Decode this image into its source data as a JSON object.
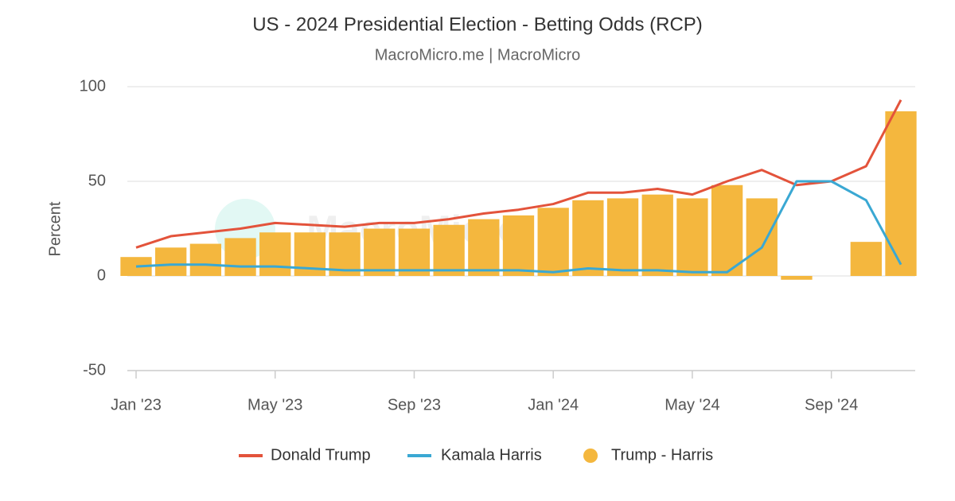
{
  "chart_data": {
    "type": "line",
    "title": "US - 2024 Presidential Election - Betting Odds (RCP)",
    "subtitle": "MacroMicro.me | MacroMicro",
    "watermark": "MacroMicro",
    "y_label": "Percent",
    "x": [
      "2023-01",
      "2023-02",
      "2023-03",
      "2023-04",
      "2023-05",
      "2023-06",
      "2023-07",
      "2023-08",
      "2023-09",
      "2023-10",
      "2023-11",
      "2023-12",
      "2024-01",
      "2024-02",
      "2024-03",
      "2024-04",
      "2024-05",
      "2024-06",
      "2024-07",
      "2024-08",
      "2024-09",
      "2024-10",
      "2024-11"
    ],
    "xlim": [
      "2023-01",
      "2024-11"
    ],
    "xticks": [
      {
        "value": "2023-01",
        "label": "Jan '23"
      },
      {
        "value": "2023-05",
        "label": "May '23"
      },
      {
        "value": "2023-09",
        "label": "Sep '23"
      },
      {
        "value": "2024-01",
        "label": "Jan '24"
      },
      {
        "value": "2024-05",
        "label": "May '24"
      },
      {
        "value": "2024-09",
        "label": "Sep '24"
      }
    ],
    "ylim": [
      -50,
      100
    ],
    "yticks": [
      -50,
      0,
      50,
      100
    ],
    "grid": true,
    "legend": "bottom",
    "series": [
      {
        "name": "Trump - Harris",
        "type": "column",
        "color": "#f4b73e",
        "values": [
          10,
          15,
          17,
          20,
          23,
          23,
          23,
          25,
          25,
          27,
          30,
          32,
          36,
          40,
          41,
          43,
          41,
          48,
          41,
          -2,
          0,
          18,
          87
        ]
      },
      {
        "name": "Donald Trump",
        "type": "line",
        "color": "#e3533b",
        "values": [
          15,
          21,
          23,
          25,
          28,
          27,
          26,
          28,
          28,
          30,
          33,
          35,
          38,
          44,
          44,
          46,
          43,
          50,
          56,
          48,
          50,
          58,
          93
        ]
      },
      {
        "name": "Kamala Harris",
        "type": "line",
        "color": "#3aa8d3",
        "values": [
          5,
          6,
          6,
          5,
          5,
          4,
          3,
          3,
          3,
          3,
          3,
          3,
          2,
          4,
          3,
          3,
          2,
          2,
          15,
          50,
          50,
          40,
          6
        ]
      }
    ],
    "legend_order": [
      1,
      2,
      0
    ]
  }
}
